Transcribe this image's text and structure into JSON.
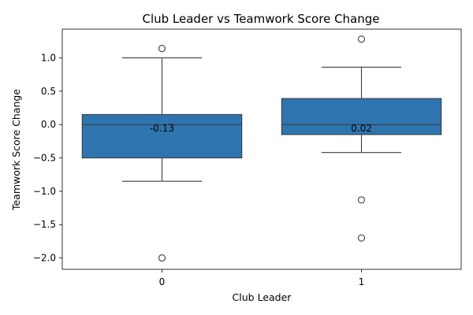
{
  "chart_data": {
    "type": "box",
    "title": "Club Leader vs Teamwork Score Change",
    "xlabel": "Club Leader",
    "ylabel": "Teamwork Score Change",
    "categories": [
      "0",
      "1"
    ],
    "ylim": [
      -2.17,
      1.43
    ],
    "yticks": [
      1.0,
      0.5,
      0.0,
      -0.5,
      -1.0,
      -1.5,
      -2.0
    ],
    "ytick_labels": [
      "1.0",
      "0.5",
      "0.0",
      "−0.5",
      "−1.0",
      "−1.5",
      "−2.0"
    ],
    "grid": false,
    "legend": "none",
    "box_color": "#2e75b0",
    "line_color": "#3d3d3d",
    "boxes": [
      {
        "category": "0",
        "whisker_low": -0.85,
        "q1": -0.5,
        "median": 0.0,
        "q3": 0.15,
        "whisker_high": 1.0,
        "outliers": [
          1.14,
          -2.0
        ],
        "mean_label": "-0.13"
      },
      {
        "category": "1",
        "whisker_low": -0.42,
        "q1": -0.15,
        "median": 0.0,
        "q3": 0.39,
        "whisker_high": 0.86,
        "outliers": [
          1.28,
          -1.13,
          -1.7
        ],
        "mean_label": "0.02"
      }
    ]
  }
}
